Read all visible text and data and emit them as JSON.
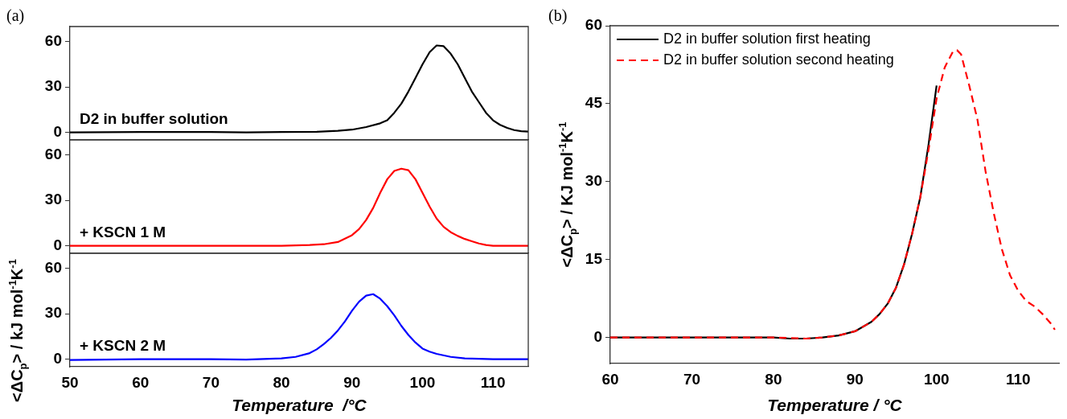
{
  "chart_data": [
    {
      "type": "line",
      "xlim": [
        50,
        115
      ],
      "ylim": [
        -5,
        70
      ],
      "yticks": [
        0,
        30,
        60
      ],
      "tick_labels": "y",
      "annotations": [
        "(a)"
      ],
      "series": [
        {
          "name": "D2 in buffer solution",
          "color": "#000000",
          "x": [
            50,
            60,
            70,
            75,
            80,
            85,
            88,
            90,
            92,
            94,
            95,
            96,
            97,
            98,
            99,
            100,
            101,
            102,
            103,
            104,
            105,
            106,
            107,
            108,
            109,
            110,
            111,
            112,
            113,
            114,
            115
          ],
          "values": [
            0,
            0.2,
            0.3,
            0,
            0.2,
            0.4,
            1,
            1.8,
            3.5,
            6,
            8,
            13,
            19,
            27,
            36,
            45,
            53,
            57.5,
            57,
            52,
            45,
            36,
            27,
            20,
            13,
            8,
            5,
            3,
            1.5,
            0.8,
            0.5
          ]
        }
      ]
    },
    {
      "type": "line",
      "xlim": [
        50,
        115
      ],
      "ylim": [
        -5,
        70
      ],
      "yticks": [
        0,
        30,
        60
      ],
      "tick_labels": "y",
      "ylabel": "<ΔC$_{p}$> / kJ mol$^{-1}$K$^{-1}$",
      "series": [
        {
          "name": "+ KSCN 1 M",
          "color": "#ff0000",
          "x": [
            50,
            60,
            70,
            75,
            80,
            84,
            86,
            88,
            90,
            91,
            92,
            93,
            94,
            95,
            96,
            97,
            98,
            99,
            100,
            101,
            102,
            103,
            104,
            105,
            106,
            107,
            108,
            109,
            110,
            115
          ],
          "values": [
            0,
            0,
            0,
            0,
            0,
            0.5,
            1,
            2.5,
            7,
            11,
            17,
            25,
            35,
            44,
            49.5,
            51,
            50,
            44,
            35,
            26,
            18,
            12.5,
            9,
            6.5,
            4.5,
            3,
            1.5,
            0.5,
            0,
            0
          ]
        }
      ]
    },
    {
      "type": "line",
      "xlim": [
        50,
        115
      ],
      "ylim": [
        -5,
        70
      ],
      "xticks": [
        50,
        60,
        70,
        80,
        90,
        100,
        110
      ],
      "yticks": [
        0,
        30,
        60
      ],
      "xlabel": "Temperature  /°C",
      "series": [
        {
          "name": "+ KSCN 2 M",
          "color": "#0000ff",
          "x": [
            50,
            60,
            70,
            75,
            80,
            82,
            84,
            85,
            86,
            87,
            88,
            89,
            90,
            91,
            92,
            93,
            94,
            95,
            96,
            97,
            98,
            99,
            100,
            101,
            102,
            104,
            106,
            110,
            115
          ],
          "values": [
            -0.5,
            0,
            0,
            -0.3,
            0.5,
            1.5,
            4,
            6.5,
            10,
            14,
            19,
            25,
            32,
            38,
            42,
            43,
            40,
            35,
            29,
            22,
            16,
            11,
            7,
            5,
            3.5,
            1.5,
            0.5,
            0,
            0
          ]
        }
      ]
    },
    {
      "type": "line",
      "xlim": [
        60,
        115
      ],
      "ylim": [
        -5,
        60
      ],
      "xticks": [
        60,
        70,
        80,
        90,
        100,
        110
      ],
      "yticks": [
        0,
        15,
        30,
        45,
        60
      ],
      "xlabel": "Temperature / °C",
      "ylabel": "<ΔC$_{p}$> / KJ mol$^{-1}$K$^{-1}$",
      "legend": "top left",
      "annotations": [
        "(b)"
      ],
      "series": [
        {
          "name": "D2 in buffer solution first heating",
          "color": "#000000",
          "line_style": "solid",
          "x": [
            60,
            70,
            80,
            82,
            84,
            86,
            88,
            90,
            92,
            93,
            94,
            95,
            96,
            97,
            98,
            99,
            100
          ],
          "values": [
            0,
            0,
            0,
            -0.2,
            -0.2,
            0,
            0.4,
            1.2,
            3,
            4.5,
            6.5,
            9.5,
            14,
            20,
            27,
            37,
            48.5
          ]
        },
        {
          "name": "D2 in buffer solution second heating",
          "color": "#ff0000",
          "line_style": "dashed",
          "x": [
            60,
            70,
            80,
            82,
            84,
            86,
            88,
            90,
            92,
            93,
            94,
            95,
            96,
            97,
            98,
            99,
            100,
            101,
            102,
            102.5,
            103,
            104,
            105,
            106,
            107,
            108,
            109,
            110,
            111,
            112,
            113,
            114,
            114.5
          ],
          "values": [
            0,
            0,
            0,
            -0.1,
            -0.2,
            0,
            0.4,
            1.2,
            3,
            4.5,
            6.5,
            9.5,
            14,
            20,
            27,
            36,
            46,
            52,
            55,
            55.3,
            54.5,
            48.5,
            42,
            32,
            24,
            17,
            12,
            9,
            7,
            6,
            4.5,
            2.7,
            1.5
          ]
        }
      ]
    }
  ]
}
